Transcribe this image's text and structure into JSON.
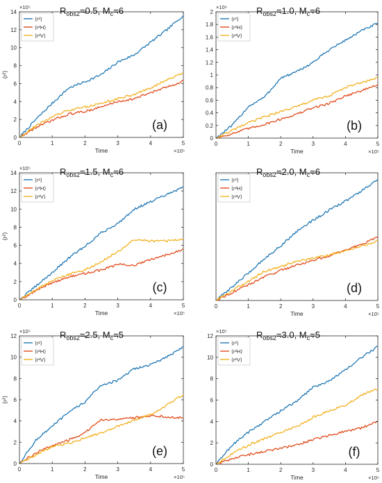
{
  "colors": {
    "r2": "#1f77b4",
    "rH": "#e04a1a",
    "rV": "#f2b01e",
    "axis": "#262626"
  },
  "legend_labels": [
    "⟨r²⟩",
    "⟨r²H⟩",
    "⟨r²V⟩"
  ],
  "chart_data": [
    {
      "type": "line",
      "panel_label": "(a)",
      "title": "R_obs2=0.5, M_c=6",
      "title_main": "R",
      "title_sub": "obs2",
      "title_mid": "=0.5, M",
      "title_sub2": "c",
      "title_end": "=6",
      "xlabel": "Time",
      "ylabel": "⟨r²⟩",
      "x_multiplier": "×10⁵",
      "y_multiplier": "×10⁵",
      "xlim": [
        0,
        5
      ],
      "ylim": [
        0,
        14
      ],
      "xticks": [
        0,
        1,
        2,
        3,
        4,
        5
      ],
      "yticks": [
        0,
        2,
        4,
        6,
        8,
        10,
        12,
        14
      ],
      "x": [
        0,
        0.5,
        1,
        1.5,
        2,
        2.5,
        3,
        3.5,
        4,
        4.5,
        5
      ],
      "series": [
        {
          "name": "⟨r²⟩",
          "values": [
            0,
            2.0,
            3.8,
            5.5,
            6.2,
            7.0,
            8.4,
            9.2,
            10.6,
            12.0,
            13.6
          ]
        },
        {
          "name": "⟨r²H⟩",
          "values": [
            0,
            1.1,
            1.9,
            2.6,
            2.9,
            3.4,
            4.0,
            4.3,
            5.0,
            5.6,
            6.3
          ]
        },
        {
          "name": "⟨r²V⟩",
          "values": [
            0,
            1.3,
            2.3,
            3.0,
            3.4,
            3.8,
            4.3,
            4.8,
            5.5,
            6.4,
            7.2
          ]
        }
      ]
    },
    {
      "type": "line",
      "panel_label": "(b)",
      "title": "R_obs2=1.0, M_c=6",
      "title_main": "R",
      "title_sub": "obs2",
      "title_mid": "=1.0, M",
      "title_sub2": "c",
      "title_end": "=6",
      "xlabel": "Time",
      "ylabel": "",
      "x_multiplier": "×10⁵",
      "y_multiplier": "×10⁶",
      "xlim": [
        0,
        5
      ],
      "ylim": [
        0,
        2
      ],
      "xticks": [
        0,
        1,
        2,
        3,
        4,
        5
      ],
      "yticks": [
        0,
        0.2,
        0.4,
        0.6,
        0.8,
        1,
        1.2,
        1.4,
        1.6,
        1.8,
        2
      ],
      "x": [
        0,
        0.5,
        1,
        1.5,
        2,
        2.5,
        3,
        3.5,
        4,
        4.5,
        5
      ],
      "series": [
        {
          "name": "⟨r²⟩",
          "values": [
            0,
            0.2,
            0.5,
            0.65,
            0.95,
            1.05,
            1.2,
            1.4,
            1.55,
            1.7,
            1.82
          ]
        },
        {
          "name": "⟨r²H⟩",
          "values": [
            0,
            0.07,
            0.15,
            0.22,
            0.3,
            0.38,
            0.48,
            0.55,
            0.67,
            0.75,
            0.85
          ]
        },
        {
          "name": "⟨r²V⟩",
          "values": [
            0,
            0.12,
            0.24,
            0.34,
            0.42,
            0.5,
            0.6,
            0.67,
            0.8,
            0.88,
            0.95
          ]
        }
      ]
    },
    {
      "type": "line",
      "panel_label": "(c)",
      "title": "R_obs2=1.5, M_c=6",
      "title_main": "R",
      "title_sub": "obs2",
      "title_mid": "=1.5, M",
      "title_sub2": "c",
      "title_end": "=6",
      "xlabel": "Time",
      "ylabel": "⟨r²⟩",
      "x_multiplier": "×10⁵",
      "y_multiplier": "×10⁵",
      "xlim": [
        0,
        5
      ],
      "ylim": [
        0,
        14
      ],
      "xticks": [
        0,
        1,
        2,
        3,
        4,
        5
      ],
      "yticks": [
        0,
        2,
        4,
        6,
        8,
        10,
        12,
        14
      ],
      "x": [
        0,
        0.5,
        1,
        1.5,
        2,
        2.5,
        3,
        3.5,
        4,
        4.5,
        5
      ],
      "series": [
        {
          "name": "⟨r²⟩",
          "values": [
            0,
            1.5,
            3.0,
            4.6,
            5.9,
            7.4,
            8.4,
            10.0,
            10.8,
            11.6,
            12.4
          ]
        },
        {
          "name": "⟨r²H⟩",
          "values": [
            0,
            1.0,
            1.9,
            2.5,
            2.9,
            3.3,
            3.9,
            3.8,
            4.4,
            5.0,
            5.6
          ]
        },
        {
          "name": "⟨r²V⟩",
          "values": [
            0,
            1.1,
            2.1,
            2.8,
            3.3,
            4.2,
            5.3,
            6.6,
            6.5,
            6.5,
            6.7
          ]
        }
      ]
    },
    {
      "type": "line",
      "panel_label": "(d)",
      "title": "R_obs2=2.0, M_c=6",
      "title_main": "R",
      "title_sub": "obs2",
      "title_mid": "=2.0, M",
      "title_sub2": "c",
      "title_end": "=6",
      "xlabel": "Time",
      "ylabel": "",
      "x_multiplier": "×10⁵",
      "y_multiplier": "",
      "xlim": [
        0,
        5
      ],
      "ylim": [
        0,
        14
      ],
      "xticks": [
        0,
        1,
        2,
        3,
        4,
        5
      ],
      "yticks": [],
      "x": [
        0,
        0.5,
        1,
        1.5,
        2,
        2.5,
        3,
        3.5,
        4,
        4.5,
        5
      ],
      "series": [
        {
          "name": "⟨r²⟩",
          "values": [
            0,
            1.5,
            3.0,
            4.6,
            6.0,
            7.6,
            8.8,
            9.9,
            10.9,
            12.0,
            13.3
          ]
        },
        {
          "name": "⟨r²H⟩",
          "values": [
            0,
            0.9,
            1.7,
            2.6,
            3.3,
            3.9,
            4.4,
            4.9,
            5.5,
            6.2,
            6.9
          ]
        },
        {
          "name": "⟨r²V⟩",
          "values": [
            0,
            1.1,
            2.1,
            3.2,
            3.7,
            4.3,
            4.6,
            5.0,
            5.5,
            5.9,
            6.6
          ]
        }
      ]
    },
    {
      "type": "line",
      "panel_label": "(e)",
      "title": "R_obs2=2.5, M_c=5",
      "title_main": "R",
      "title_sub": "obs2",
      "title_mid": "=2.5, M",
      "title_sub2": "c",
      "title_end": "=5",
      "xlabel": "Time",
      "ylabel": "⟨r²⟩",
      "x_multiplier": "×10⁵",
      "y_multiplier": "×10⁵",
      "xlim": [
        0,
        5
      ],
      "ylim": [
        0,
        12
      ],
      "xticks": [
        0,
        1,
        2,
        3,
        4,
        5
      ],
      "yticks": [
        0,
        2,
        4,
        6,
        8,
        10,
        12
      ],
      "x": [
        0,
        0.5,
        1,
        1.5,
        2,
        2.5,
        3,
        3.5,
        4,
        4.5,
        5
      ],
      "series": [
        {
          "name": "⟨r²⟩",
          "values": [
            0,
            2.2,
            3.5,
            4.8,
            5.8,
            7.4,
            7.8,
            8.9,
            9.3,
            10.0,
            11.0
          ]
        },
        {
          "name": "⟨r²H⟩",
          "values": [
            0,
            1.0,
            1.7,
            2.2,
            2.9,
            4.1,
            4.2,
            4.3,
            4.5,
            4.4,
            4.3
          ]
        },
        {
          "name": "⟨r²V⟩",
          "values": [
            0,
            0.8,
            1.6,
            1.9,
            2.4,
            2.9,
            3.5,
            4.1,
            4.6,
            5.5,
            6.5
          ]
        }
      ]
    },
    {
      "type": "line",
      "panel_label": "(f)",
      "title": "R_obs2=3.0, M_c=5",
      "title_main": "R",
      "title_sub": "obs2",
      "title_mid": "=3.0, M",
      "title_sub2": "c",
      "title_end": "=5",
      "xlabel": "Time",
      "ylabel": "",
      "x_multiplier": "×10⁵",
      "y_multiplier": "×10⁵",
      "xlim": [
        0,
        5
      ],
      "ylim": [
        0,
        12
      ],
      "xticks": [
        0,
        1,
        2,
        3,
        4,
        5
      ],
      "yticks": [
        0,
        2,
        4,
        6,
        8,
        10,
        12
      ],
      "x": [
        0,
        0.5,
        1,
        1.5,
        2,
        2.5,
        3,
        3.5,
        4,
        4.5,
        5
      ],
      "series": [
        {
          "name": "⟨r²⟩",
          "values": [
            0,
            1.8,
            3.0,
            4.0,
            5.0,
            5.9,
            7.2,
            7.8,
            8.8,
            10.0,
            11.0
          ]
        },
        {
          "name": "⟨r²H⟩",
          "values": [
            0,
            0.5,
            0.9,
            1.2,
            1.5,
            1.8,
            2.3,
            2.7,
            3.1,
            3.4,
            4.0
          ]
        },
        {
          "name": "⟨r²V⟩",
          "values": [
            0,
            1.0,
            1.8,
            2.4,
            3.0,
            3.5,
            4.4,
            5.0,
            5.5,
            6.5,
            7.0
          ]
        }
      ]
    }
  ]
}
